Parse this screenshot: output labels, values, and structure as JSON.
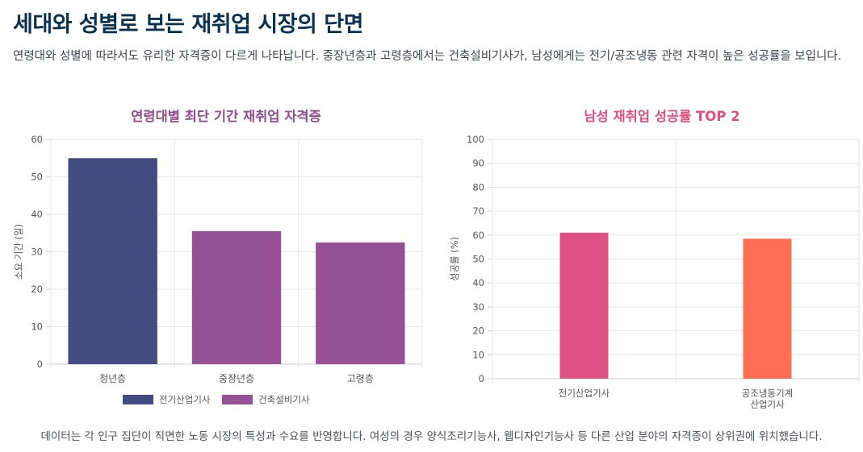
{
  "title": "세대와 성별로 보는 재취업 시장의 단면",
  "description": "연령대와 성별에 따라서도 유리한 자격증이 다르게 나타납니다. 중장년층과 고령층에서는 건축설비기사가, 남성에게는 전기/공조냉동 관련 자격이 높은 성공률을 보입니다.",
  "footnote": "데이터는 각 인구 집단이 직면한 노동 시장의 특성과 수요를 반영합니다. 여성의 경우 양식조리기능사, 웹디자인기능사 등 다른 산업 분야의 자격증이 상위권에 위치했습니다.",
  "chart_data": [
    {
      "type": "bar",
      "title": "연령대별 최단 기간 재취업 자격증",
      "ylabel": "소요 기간 (일)",
      "xlabel": "",
      "ylim": [
        0,
        60
      ],
      "yticks": [
        0,
        10,
        20,
        30,
        40,
        50,
        60
      ],
      "categories": [
        "청년층",
        "중장년층",
        "고령층"
      ],
      "bars": [
        {
          "category": "청년층",
          "value": 55,
          "series": "전기산업기사"
        },
        {
          "category": "중장년층",
          "value": 35.5,
          "series": "건축설비기사"
        },
        {
          "category": "고령층",
          "value": 32.5,
          "series": "건축설비기사"
        }
      ],
      "legend": [
        {
          "name": "전기산업기사",
          "color": "#434c82"
        },
        {
          "name": "건축설비기사",
          "color": "#955193"
        }
      ],
      "legend_position": "bottom",
      "grid": true
    },
    {
      "type": "bar",
      "title": "남성 재취업 성공률 TOP 2",
      "ylabel": "성공률 (%)",
      "xlabel": "",
      "ylim": [
        0,
        100
      ],
      "yticks": [
        0,
        10,
        20,
        30,
        40,
        50,
        60,
        70,
        80,
        90,
        100
      ],
      "categories": [
        [
          "전기산업기사"
        ],
        [
          "공조냉동기계",
          "산업기사"
        ]
      ],
      "values": [
        61,
        58.5
      ],
      "colors": [
        "#de5182",
        "#ff6e54"
      ],
      "grid": true
    }
  ]
}
